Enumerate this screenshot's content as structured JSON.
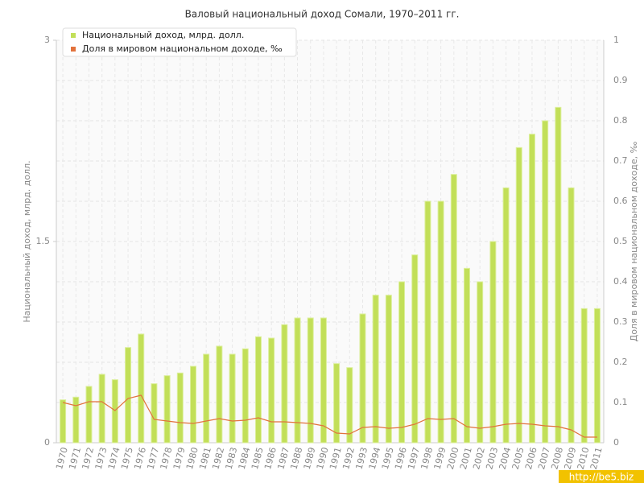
{
  "chart_data": {
    "type": "bar_line",
    "title": "Валовый национальный доход Сомали, 1970–2011 гг.",
    "y_label": "Национальный доход, млрд. долл.",
    "y2_label": "Доля в мировом национальном доходе, ‰",
    "watermark": "http://be5.biz",
    "categories": [
      "1970",
      "1971",
      "1972",
      "1973",
      "1974",
      "1975",
      "1976",
      "1977",
      "1978",
      "1979",
      "1980",
      "1981",
      "1982",
      "1983",
      "1984",
      "1985",
      "1986",
      "1987",
      "1988",
      "1989",
      "1990",
      "1991",
      "1992",
      "1993",
      "1994",
      "1995",
      "1996",
      "1997",
      "1998",
      "1999",
      "2000",
      "2001",
      "2002",
      "2003",
      "2004",
      "2005",
      "2006",
      "2007",
      "2008",
      "2009",
      "2010",
      "2011"
    ],
    "series": [
      {
        "name": "Национальный доход, млрд. долл.",
        "type": "bar",
        "color": "#c2df58",
        "values": [
          0.32,
          0.34,
          0.42,
          0.51,
          0.47,
          0.71,
          0.81,
          0.44,
          0.5,
          0.52,
          0.57,
          0.66,
          0.72,
          0.66,
          0.7,
          0.79,
          0.78,
          0.88,
          0.93,
          0.93,
          0.93,
          0.59,
          0.56,
          0.96,
          1.1,
          1.1,
          1.2,
          1.4,
          1.8,
          1.8,
          2.0,
          1.3,
          1.2,
          1.5,
          1.9,
          2.2,
          2.3,
          2.4,
          2.5,
          1.9,
          1.0,
          1.0
        ]
      },
      {
        "name": "Доля в мировом национальном доходе, ‰",
        "type": "line",
        "axis": "y2",
        "color": "#e2723c",
        "values": [
          0.1,
          0.092,
          0.102,
          0.102,
          0.08,
          0.11,
          0.118,
          0.058,
          0.054,
          0.05,
          0.048,
          0.054,
          0.06,
          0.054,
          0.056,
          0.062,
          0.052,
          0.052,
          0.05,
          0.048,
          0.042,
          0.024,
          0.022,
          0.038,
          0.04,
          0.036,
          0.038,
          0.046,
          0.06,
          0.058,
          0.06,
          0.04,
          0.036,
          0.04,
          0.046,
          0.048,
          0.046,
          0.042,
          0.04,
          0.032,
          0.014,
          0.014
        ]
      }
    ],
    "ylim": [
      0,
      3
    ],
    "yticks": [
      0,
      1.5,
      3
    ],
    "y2lim": [
      0,
      1
    ],
    "y2ticks": [
      0,
      0.1,
      0.2,
      0.3,
      0.4,
      0.5,
      0.6,
      0.7,
      0.8,
      0.9,
      1
    ],
    "grid": true,
    "legend": "top-left"
  }
}
